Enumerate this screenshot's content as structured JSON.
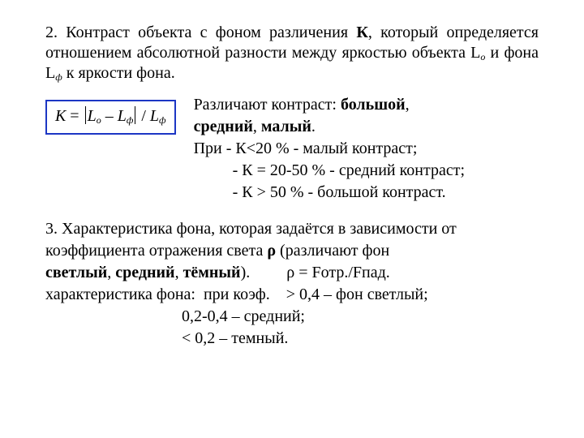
{
  "colors": {
    "text": "#000000",
    "bg": "#ffffff",
    "formula_border": "#1c36c4"
  },
  "typography": {
    "family": "Times New Roman",
    "base_size_pt": 15
  },
  "p1": {
    "seg1": "2. Контраст объекта с фоном различения ",
    "kbold": "К",
    "seg2": ", который определяется отношением абсолютной разности между яркостью объекта L",
    "sub_o": "о",
    "seg3": " и фона L",
    "sub_f": "ф",
    "seg4": " к яркости фона."
  },
  "formula": {
    "K": "К",
    "eq": " = ",
    "L": "L",
    "sub_o": "о",
    "minus": " – ",
    "sub_f": "ф",
    "div": " / ",
    "sub_f2": "ф"
  },
  "list": {
    "l1a": "Различают контраст: ",
    "l1b": "большой",
    "l1c": ",",
    "l2a": "средний",
    "l2b": ", ",
    "l2c": "малый",
    "l2d": ".",
    "l3": "При - К<20 % - малый контраст;",
    "l4": "- К = 20-50 % - средний контраст;",
    "l5": "- К > 50 % - большой контраст."
  },
  "p3": {
    "l1": "3. Характеристика фона, которая задаётся в зависимости от",
    "l2a": "коэффициента отражения света ",
    "l2rho": "ρ",
    "l2b": " (различают фон",
    "l3a": "светлый",
    "l3b": ", ",
    "l3c": "средний",
    "l3d": ", ",
    "l3e": "тёмный",
    "l3f": ").         ρ = Fотр./Fпад.",
    "l4": "характеристика фона:  при коэф.    > 0,4 – фон светлый;",
    "l5": "0,2-0,4 – средний;",
    "l6": "< 0,2 – темный."
  }
}
